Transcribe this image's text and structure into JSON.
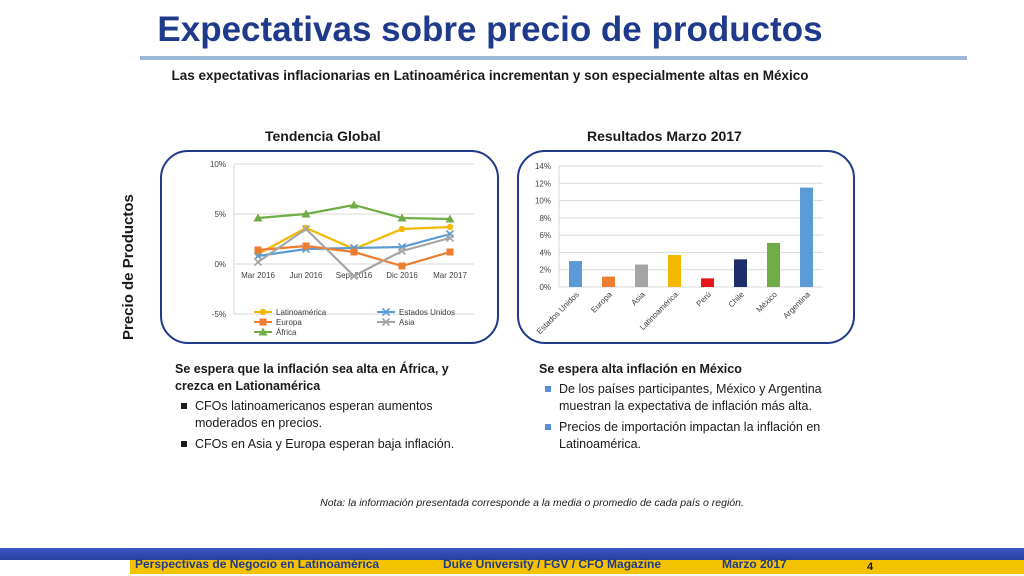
{
  "header": {
    "title": "Expectativas sobre precio de productos",
    "subtitle": "Las expectativas inflacionarias en Latinoamérica incrementan y son especialmente altas en México"
  },
  "side_label": "Precio de Productos",
  "colors": {
    "title": "#1f3a8a",
    "panel_border": "#1f3a8a",
    "latinoamerica": "#f5b800",
    "estados_unidos": "#5b9bd5",
    "europa": "#ed7d31",
    "asia": "#a5a5a5",
    "africa": "#70ad47",
    "peru": "#e8141c",
    "chile": "#1c2f6b",
    "footer_bar": "#2a3fa0",
    "footer_strip": "#f5c200"
  },
  "left_panel": {
    "title": "Tendencia Global"
  },
  "right_panel": {
    "title": "Resultados Marzo 2017"
  },
  "chart_data": [
    {
      "type": "line",
      "title": "Tendencia Global",
      "x": [
        "Mar 2016",
        "Jun 2016",
        "Sept 2016",
        "Dic 2016",
        "Mar 2017"
      ],
      "ylim": [
        -5,
        10
      ],
      "yticks": [
        "10%",
        "5%",
        "0%",
        "-5%"
      ],
      "ytick_values": [
        10,
        5,
        0,
        -5
      ],
      "grid": true,
      "legend": "bottom",
      "series": [
        {
          "name": "Latinoamérica",
          "color": "#f5b800",
          "marker": "circle",
          "values": [
            1.0,
            3.6,
            1.5,
            3.5,
            3.7
          ]
        },
        {
          "name": "Estados Unidos",
          "color": "#5b9bd5",
          "marker": "x",
          "values": [
            0.8,
            1.5,
            1.6,
            1.7,
            3.0
          ]
        },
        {
          "name": "Europa",
          "color": "#ed7d31",
          "marker": "square",
          "values": [
            1.4,
            1.8,
            1.2,
            -0.2,
            1.2
          ]
        },
        {
          "name": "Asia",
          "color": "#a5a5a5",
          "marker": "x",
          "values": [
            0.2,
            3.5,
            -1.2,
            1.3,
            2.6
          ]
        },
        {
          "name": "África",
          "color": "#70ad47",
          "marker": "triangle",
          "values": [
            4.6,
            5.0,
            5.9,
            4.6,
            4.5
          ]
        }
      ]
    },
    {
      "type": "bar",
      "title": "Resultados Marzo 2017",
      "categories": [
        "Estados Unidos",
        "Europa",
        "Asia",
        "Latinoamérica",
        "Perú",
        "Chile",
        "México",
        "Argentina"
      ],
      "values": [
        3.0,
        1.2,
        2.6,
        3.7,
        1.0,
        3.2,
        5.1,
        11.5
      ],
      "colors": [
        "#5b9bd5",
        "#ed7d31",
        "#a5a5a5",
        "#f5b800",
        "#e8141c",
        "#1c2f6b",
        "#70ad47",
        "#5b9bd5"
      ],
      "ylim": [
        0,
        14
      ],
      "yticks": [
        "14%",
        "12%",
        "10%",
        "8%",
        "6%",
        "4%",
        "2%",
        "0%"
      ],
      "ytick_values": [
        14,
        12,
        10,
        8,
        6,
        4,
        2,
        0
      ],
      "grid": true
    }
  ],
  "left_text": {
    "heading": "Se espera que la inflación sea alta en África, y crezca en Lationamérica",
    "bullets": [
      "CFOs latinoamericanos esperan aumentos moderados en precios.",
      "CFOs en Asia y Europa esperan baja inflación."
    ]
  },
  "right_text": {
    "heading": "Se espera alta inflación en México",
    "bullets": [
      "De los países participantes, México y Argentina muestran la expectativa de inflación más alta.",
      "Precios de importación impactan la inflación en Latinoamérica."
    ]
  },
  "note": "Nota: la información presentada corresponde a la media o promedio de cada país o región.",
  "footer": {
    "left": "Perspectivas de Negocio en Latinoamérica",
    "center": "Duke University / FGV / CFO Magazine",
    "right": "Marzo 2017",
    "page": "4"
  }
}
